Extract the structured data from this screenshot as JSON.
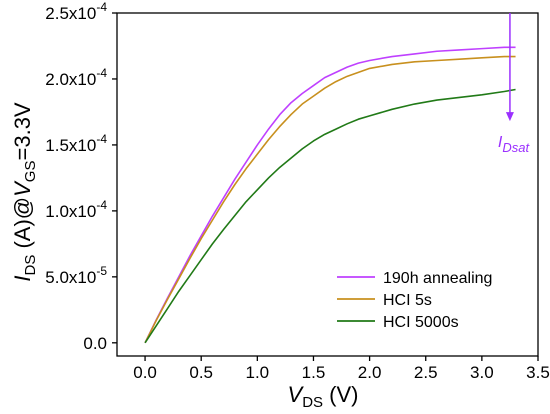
{
  "chart_data": {
    "type": "line",
    "xlabel": {
      "main": "V",
      "sub": "DS",
      "rest": " (V)"
    },
    "ylabel": {
      "main": "I",
      "sub1": "DS",
      "mid": " (A)@",
      "main2": "V",
      "sub2": "GS",
      "rest": "=3.3V"
    },
    "xlim": [
      -0.25,
      3.5
    ],
    "ylim": [
      -1e-05,
      0.00025
    ],
    "x_ticks": [
      {
        "value": 0.0,
        "label": "0.0"
      },
      {
        "value": 0.5,
        "label": "0.5"
      },
      {
        "value": 1.0,
        "label": "1.0"
      },
      {
        "value": 1.5,
        "label": "1.5"
      },
      {
        "value": 2.0,
        "label": "2.0"
      },
      {
        "value": 2.5,
        "label": "2.5"
      },
      {
        "value": 3.0,
        "label": "3.0"
      },
      {
        "value": 3.5,
        "label": "3.5"
      }
    ],
    "y_ticks": [
      {
        "value": 0,
        "mantissa": "0.0",
        "exp": ""
      },
      {
        "value": 5e-05,
        "mantissa": "5.0x10",
        "exp": "-5"
      },
      {
        "value": 0.0001,
        "mantissa": "1.0x10",
        "exp": "-4"
      },
      {
        "value": 0.00015,
        "mantissa": "1.5x10",
        "exp": "-4"
      },
      {
        "value": 0.0002,
        "mantissa": "2.0x10",
        "exp": "-4"
      },
      {
        "value": 0.00025,
        "mantissa": "2.5x10",
        "exp": "-4"
      }
    ],
    "series": [
      {
        "name": "190h annealing",
        "color": "#bf40ff",
        "x": [
          0,
          0.1,
          0.2,
          0.3,
          0.4,
          0.5,
          0.6,
          0.7,
          0.8,
          0.9,
          1.0,
          1.1,
          1.2,
          1.3,
          1.4,
          1.5,
          1.6,
          1.7,
          1.8,
          1.9,
          2.0,
          2.2,
          2.4,
          2.6,
          2.8,
          3.0,
          3.2,
          3.3
        ],
        "y": [
          0,
          1.75e-05,
          3.4e-05,
          5e-05,
          6.6e-05,
          8.1e-05,
          9.6e-05,
          0.00011,
          0.000124,
          0.000137,
          0.00015,
          0.000162,
          0.000173,
          0.000182,
          0.000189,
          0.000195,
          0.000201,
          0.000205,
          0.000209,
          0.000212,
          0.000214,
          0.000217,
          0.000219,
          0.000221,
          0.000222,
          0.000223,
          0.000224,
          0.000224
        ]
      },
      {
        "name": "HCI 5s",
        "color": "#c8901e",
        "x": [
          0,
          0.1,
          0.2,
          0.3,
          0.4,
          0.5,
          0.6,
          0.7,
          0.8,
          0.9,
          1.0,
          1.1,
          1.2,
          1.3,
          1.4,
          1.5,
          1.6,
          1.7,
          1.8,
          1.9,
          2.0,
          2.2,
          2.4,
          2.6,
          2.8,
          3.0,
          3.2,
          3.3
        ],
        "y": [
          0,
          1.7e-05,
          3.3e-05,
          4.85e-05,
          6.4e-05,
          7.9e-05,
          9.3e-05,
          0.000107,
          0.00012,
          0.000132,
          0.000143,
          0.000154,
          0.000164,
          0.000173,
          0.000181,
          0.000187,
          0.000193,
          0.000198,
          0.000202,
          0.000205,
          0.000208,
          0.000211,
          0.000213,
          0.000214,
          0.000215,
          0.000216,
          0.000217,
          0.000217
        ]
      },
      {
        "name": "HCI 5000s",
        "color": "#217a17",
        "x": [
          0,
          0.1,
          0.2,
          0.3,
          0.4,
          0.5,
          0.6,
          0.7,
          0.8,
          0.9,
          1.0,
          1.1,
          1.2,
          1.3,
          1.4,
          1.5,
          1.6,
          1.7,
          1.8,
          1.9,
          2.0,
          2.2,
          2.4,
          2.6,
          2.8,
          3.0,
          3.2,
          3.3
        ],
        "y": [
          0,
          1.3e-05,
          2.6e-05,
          3.9e-05,
          5.1e-05,
          6.3e-05,
          7.5e-05,
          8.6e-05,
          9.65e-05,
          0.000107,
          0.000116,
          0.000125,
          0.000133,
          0.00014,
          0.000147,
          0.000153,
          0.000158,
          0.000162,
          0.000166,
          0.0001695,
          0.000172,
          0.000177,
          0.000181,
          0.000184,
          0.000186,
          0.000188,
          0.0001905,
          0.000192
        ]
      }
    ],
    "annotation": {
      "x": 3.25,
      "y_from": 0.00025,
      "y_to": 0.000168,
      "label_main": "I",
      "label_sub": "Dsat",
      "color": "#9b30ff"
    },
    "legend": {
      "position": "bottom-right"
    },
    "grid": false
  }
}
